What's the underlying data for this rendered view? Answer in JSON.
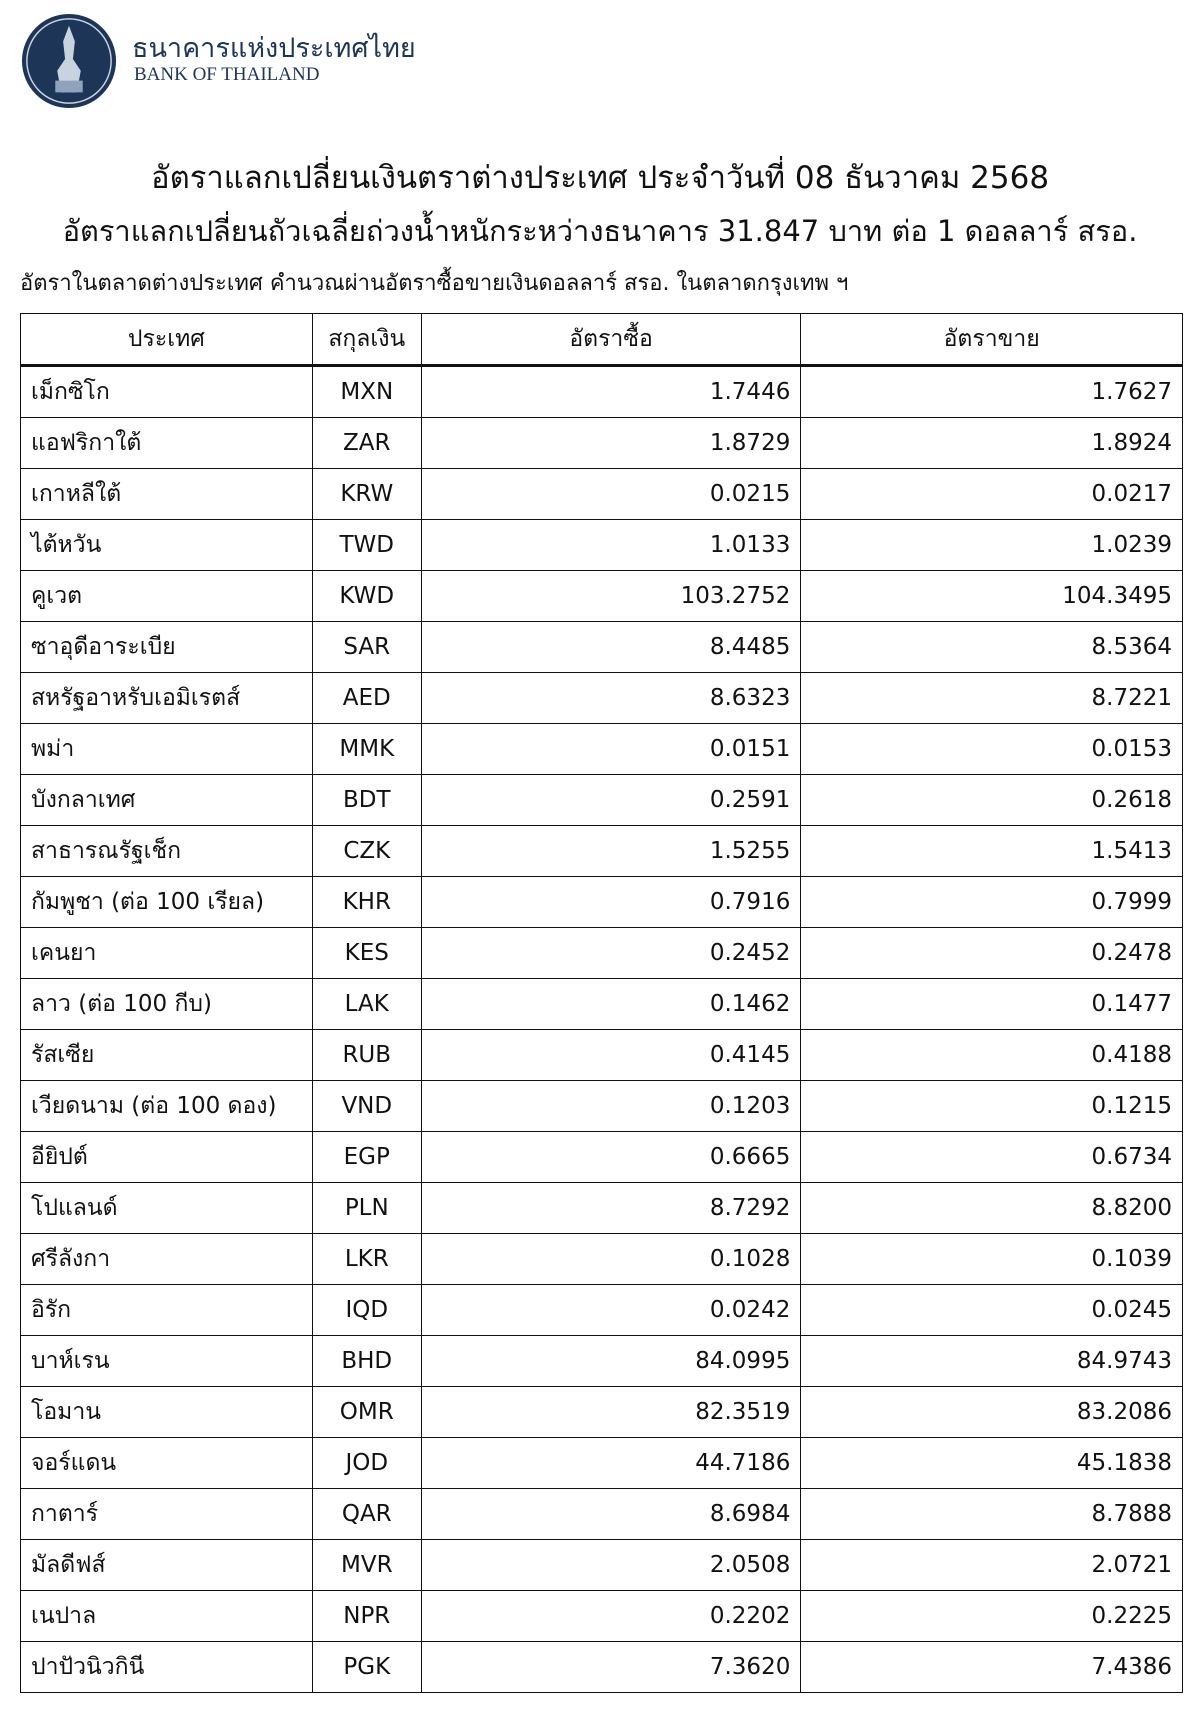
{
  "header": {
    "bank_name_th": "ธนาคารแห่งประเทศไทย",
    "bank_name_en": "BANK OF THAILAND",
    "brand_color": "#1d3557"
  },
  "title": "อัตราแลกเปลี่ยนเงินตราต่างประเทศ ประจำวันที่ 08 ธันวาคม 2568",
  "subtitle": "อัตราแลกเปลี่ยนถัวเฉลี่ยถ่วงน้ำหนักระหว่างธนาคาร 31.847 บาท ต่อ 1 ดอลลาร์ สรอ.",
  "note": "อัตราในตลาดต่างประเทศ คำนวณผ่านอัตราซื้อขายเงินดอลลาร์ สรอ. ในตลาดกรุงเทพ ฯ",
  "table": {
    "columns": [
      "ประเทศ",
      "สกุลเงิน",
      "อัตราซื้อ",
      "อัตราขาย"
    ],
    "rows": [
      [
        "เม็กซิโก",
        "MXN",
        "1.7446",
        "1.7627"
      ],
      [
        "แอฟริกาใต้",
        "ZAR",
        "1.8729",
        "1.8924"
      ],
      [
        "เกาหลีใต้",
        "KRW",
        "0.0215",
        "0.0217"
      ],
      [
        "ไต้หวัน",
        "TWD",
        "1.0133",
        "1.0239"
      ],
      [
        "คูเวต",
        "KWD",
        "103.2752",
        "104.3495"
      ],
      [
        "ซาอุดีอาระเบีย",
        "SAR",
        "8.4485",
        "8.5364"
      ],
      [
        "สหรัฐอาหรับเอมิเรตส์",
        "AED",
        "8.6323",
        "8.7221"
      ],
      [
        "พม่า",
        "MMK",
        "0.0151",
        "0.0153"
      ],
      [
        "บังกลาเทศ",
        "BDT",
        "0.2591",
        "0.2618"
      ],
      [
        "สาธารณรัฐเช็ก",
        "CZK",
        "1.5255",
        "1.5413"
      ],
      [
        "กัมพูชา (ต่อ 100 เรียล)",
        "KHR",
        "0.7916",
        "0.7999"
      ],
      [
        "เคนยา",
        "KES",
        "0.2452",
        "0.2478"
      ],
      [
        "ลาว (ต่อ 100 กีบ)",
        "LAK",
        "0.1462",
        "0.1477"
      ],
      [
        "รัสเซีย",
        "RUB",
        "0.4145",
        "0.4188"
      ],
      [
        "เวียดนาม (ต่อ 100 ดอง)",
        "VND",
        "0.1203",
        "0.1215"
      ],
      [
        "อียิปต์",
        "EGP",
        "0.6665",
        "0.6734"
      ],
      [
        "โปแลนด์",
        "PLN",
        "8.7292",
        "8.8200"
      ],
      [
        "ศรีลังกา",
        "LKR",
        "0.1028",
        "0.1039"
      ],
      [
        "อิรัก",
        "IQD",
        "0.0242",
        "0.0245"
      ],
      [
        "บาห์เรน",
        "BHD",
        "84.0995",
        "84.9743"
      ],
      [
        "โอมาน",
        "OMR",
        "82.3519",
        "83.2086"
      ],
      [
        "จอร์แดน",
        "JOD",
        "44.7186",
        "45.1838"
      ],
      [
        "กาตาร์",
        "QAR",
        "8.6984",
        "8.7888"
      ],
      [
        "มัลดีฟส์",
        "MVR",
        "2.0508",
        "2.0721"
      ],
      [
        "เนปาล",
        "NPR",
        "0.2202",
        "0.2225"
      ],
      [
        "ปาปัวนิวกินี",
        "PGK",
        "7.3620",
        "7.4386"
      ]
    ]
  }
}
